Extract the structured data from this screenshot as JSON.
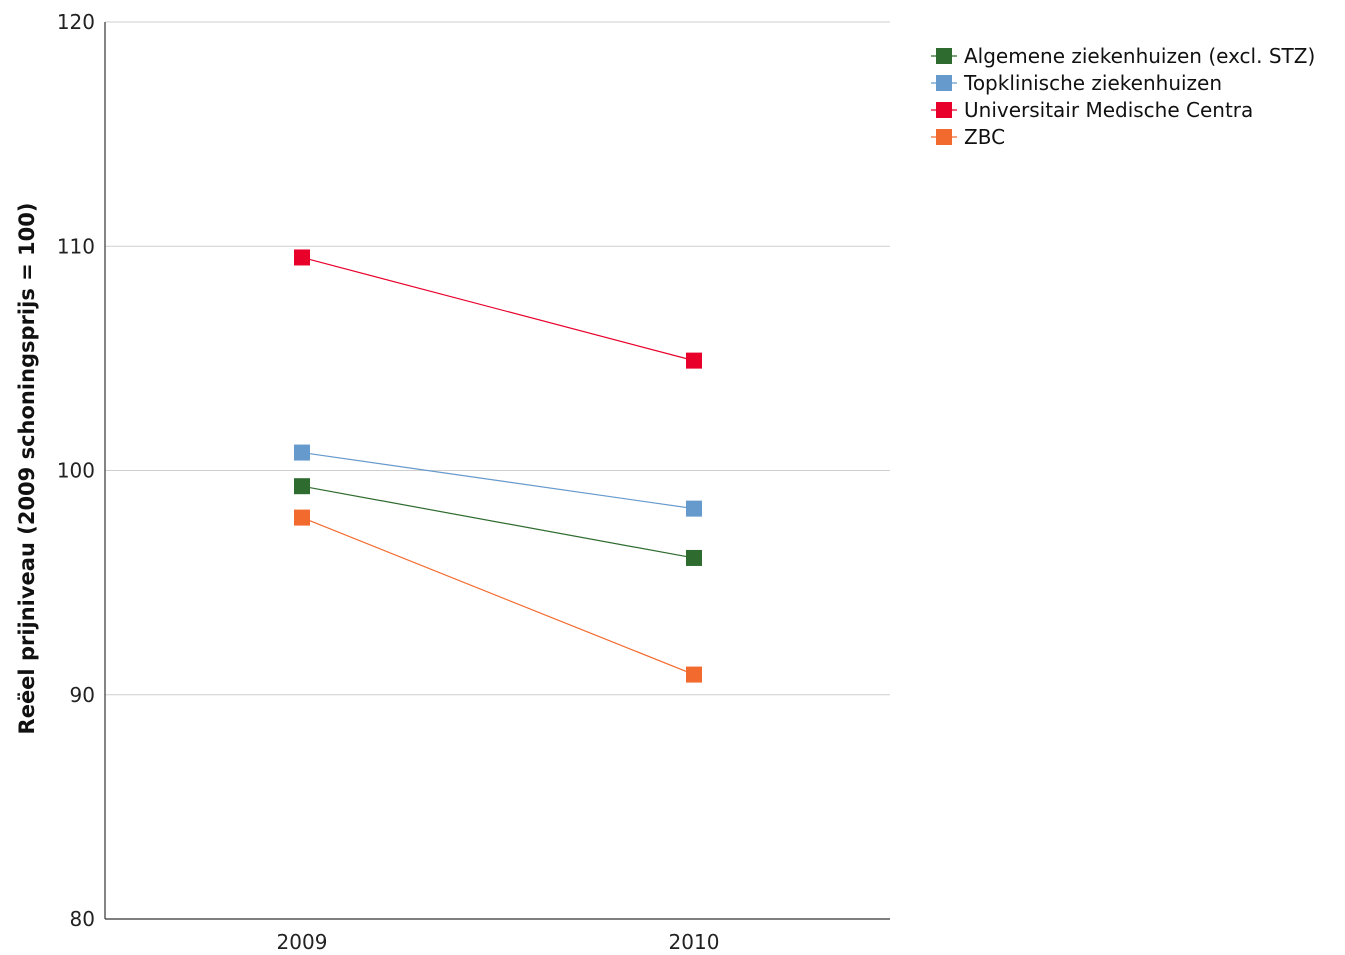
{
  "chart_data": {
    "type": "line",
    "title": "",
    "xlabel": "",
    "ylabel": "Reëel prijniveau (2009 schoningsprijs = 100)",
    "categories": [
      "2009",
      "2010"
    ],
    "ylim": [
      80,
      120
    ],
    "yticks": [
      80,
      90,
      100,
      110,
      120
    ],
    "grid": true,
    "legend_position": "top-right",
    "series": [
      {
        "name": "Algemene ziekenhuizen (excl. STZ)",
        "color": "#2e6b2e",
        "values": [
          99.3,
          96.1
        ]
      },
      {
        "name": "Topklinische ziekenhuizen",
        "color": "#6699cc",
        "values": [
          100.8,
          98.3
        ]
      },
      {
        "name": "Universitair Medische Centra",
        "color": "#e8002a",
        "values": [
          109.5,
          104.9
        ]
      },
      {
        "name": "ZBC",
        "color": "#f26a2e",
        "values": [
          97.9,
          90.9
        ]
      }
    ]
  }
}
